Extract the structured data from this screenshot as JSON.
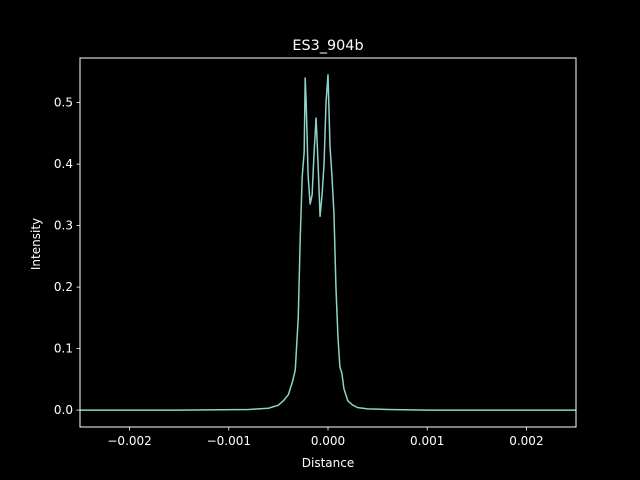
{
  "chart_data": {
    "type": "line",
    "title": "ES3_904b",
    "xlabel": "Distance",
    "ylabel": "Intensity",
    "xlim": [
      -0.0025,
      0.0025
    ],
    "ylim": [
      -0.0275,
      0.5725
    ],
    "xticks": [
      {
        "value": -0.002,
        "label": "−0.002"
      },
      {
        "value": -0.001,
        "label": "−0.001"
      },
      {
        "value": 0.0,
        "label": "0.000"
      },
      {
        "value": 0.001,
        "label": "0.001"
      },
      {
        "value": 0.002,
        "label": "0.002"
      }
    ],
    "yticks": [
      {
        "value": 0.0,
        "label": "0.0"
      },
      {
        "value": 0.1,
        "label": "0.1"
      },
      {
        "value": 0.2,
        "label": "0.2"
      },
      {
        "value": 0.3,
        "label": "0.3"
      },
      {
        "value": 0.4,
        "label": "0.4"
      },
      {
        "value": 0.5,
        "label": "0.5"
      }
    ],
    "grid": false,
    "background": "#000000",
    "axis_color": "#ffffff",
    "series": [
      {
        "color": "#8dd3c7",
        "points": [
          [
            -0.0025,
            0.0
          ],
          [
            -0.0015,
            0.0
          ],
          [
            -0.0008,
            0.001
          ],
          [
            -0.0006,
            0.003
          ],
          [
            -0.0005,
            0.008
          ],
          [
            -0.00045,
            0.015
          ],
          [
            -0.0004,
            0.025
          ],
          [
            -0.00036,
            0.045
          ],
          [
            -0.00033,
            0.065
          ],
          [
            -0.0003,
            0.15
          ],
          [
            -0.00028,
            0.28
          ],
          [
            -0.00026,
            0.38
          ],
          [
            -0.00024,
            0.42
          ],
          [
            -0.00023,
            0.54
          ],
          [
            -0.00022,
            0.5
          ],
          [
            -0.0002,
            0.38
          ],
          [
            -0.00018,
            0.335
          ],
          [
            -0.00016,
            0.35
          ],
          [
            -0.00014,
            0.42
          ],
          [
            -0.00012,
            0.475
          ],
          [
            -0.0001,
            0.4
          ],
          [
            -8e-05,
            0.315
          ],
          [
            -6e-05,
            0.35
          ],
          [
            -4e-05,
            0.4
          ],
          [
            -2e-05,
            0.5
          ],
          [
            0.0,
            0.545
          ],
          [
            2e-05,
            0.43
          ],
          [
            4e-05,
            0.38
          ],
          [
            6e-05,
            0.32
          ],
          [
            8e-05,
            0.2
          ],
          [
            0.0001,
            0.12
          ],
          [
            0.00012,
            0.07
          ],
          [
            0.00014,
            0.06
          ],
          [
            0.00016,
            0.035
          ],
          [
            0.00018,
            0.025
          ],
          [
            0.0002,
            0.015
          ],
          [
            0.00025,
            0.008
          ],
          [
            0.0003,
            0.004
          ],
          [
            0.0004,
            0.002
          ],
          [
            0.0006,
            0.001
          ],
          [
            0.001,
            0.0
          ],
          [
            0.0025,
            0.0
          ]
        ]
      }
    ]
  }
}
